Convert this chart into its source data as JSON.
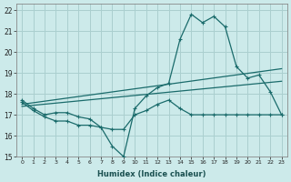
{
  "xlabel": "Humidex (Indice chaleur)",
  "bg_color": "#cceaea",
  "grid_color": "#aacfcf",
  "line_color": "#1a6b6b",
  "xlim": [
    -0.5,
    23.5
  ],
  "ylim": [
    15,
    22.3
  ],
  "xticks": [
    0,
    1,
    2,
    3,
    4,
    5,
    6,
    7,
    8,
    9,
    10,
    11,
    12,
    13,
    14,
    15,
    16,
    17,
    18,
    19,
    20,
    21,
    22,
    23
  ],
  "yticks": [
    15,
    16,
    17,
    18,
    19,
    20,
    21,
    22
  ],
  "line1_x": [
    0,
    1,
    2,
    3,
    4,
    5,
    6,
    7,
    8,
    9,
    10,
    11,
    12,
    13,
    14,
    15,
    16,
    17,
    18,
    19,
    20,
    21,
    22,
    23
  ],
  "line1_y": [
    17.7,
    17.3,
    17.0,
    17.1,
    17.1,
    16.9,
    16.8,
    16.4,
    15.5,
    15.0,
    17.3,
    17.9,
    18.3,
    18.5,
    20.6,
    21.8,
    21.4,
    21.7,
    21.2,
    19.3,
    18.75,
    18.9,
    18.1,
    17.0
  ],
  "line2_x": [
    0,
    1,
    2,
    3,
    4,
    5,
    6,
    7,
    8,
    9,
    10,
    11,
    12,
    13,
    14,
    15,
    16,
    17,
    18,
    19,
    20,
    21,
    22,
    23
  ],
  "line2_y": [
    17.6,
    17.2,
    16.9,
    16.7,
    16.7,
    16.5,
    16.5,
    16.4,
    16.3,
    16.3,
    17.0,
    17.2,
    17.5,
    17.7,
    17.3,
    17.0,
    17.0,
    17.0,
    17.0,
    17.0,
    17.0,
    17.0,
    17.0,
    17.0
  ],
  "line3_x": [
    0,
    23
  ],
  "line3_y": [
    17.5,
    19.2
  ],
  "line4_x": [
    0,
    23
  ],
  "line4_y": [
    17.4,
    18.6
  ]
}
